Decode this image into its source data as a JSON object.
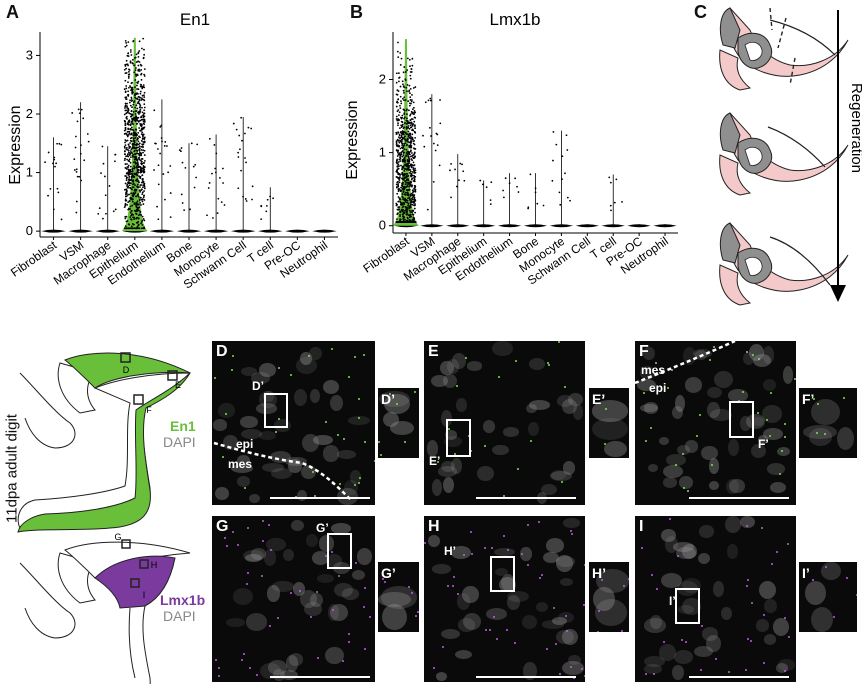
{
  "panels": {
    "A": "A",
    "B": "B",
    "C": "C",
    "D": "D",
    "E": "E",
    "F": "F",
    "G": "G",
    "H": "H",
    "I": "I",
    "Dp": "D’",
    "Ep": "E’",
    "Fp": "F’",
    "Gp": "G’",
    "Hp": "H’",
    "Ip": "I’"
  },
  "regeneration_label": "Regeneration",
  "side_label": "11dpa adult digit",
  "legend_top": {
    "marker": "En1",
    "stain": "DAPI"
  },
  "legend_bottom": {
    "marker": "Lmx1b",
    "stain": "DAPI"
  },
  "diagram_boxes": {
    "D": "D",
    "E": "E",
    "F": "F",
    "G": "G",
    "H": "H",
    "I": "I"
  },
  "tissue_labels": {
    "epi": "epi",
    "mes": "mes"
  },
  "colors": {
    "en1_green": "#6abf3a",
    "lmx1b_purple": "#7a3a9e",
    "soft_tissue": "#f4c9c9",
    "bone": "#999999"
  },
  "chart_data": [
    {
      "type": "violin",
      "title": "En1",
      "ylabel": "Expression",
      "categories": [
        "Fibroblast",
        "VSM",
        "Macrophage",
        "Epithelium",
        "Endothelium",
        "Bone",
        "Monocyte",
        "Schwann Cell",
        "T cell",
        "Pre-OC",
        "Neutrophil"
      ],
      "yticks": [
        0,
        1,
        2,
        3
      ],
      "ylim": [
        -0.1,
        3.4
      ],
      "max_values": [
        1.6,
        2.2,
        1.45,
        3.3,
        2.25,
        1.5,
        1.65,
        1.95,
        0.75,
        0.02,
        0.02
      ],
      "highlight": "Epithelium"
    },
    {
      "type": "violin",
      "title": "Lmx1b",
      "ylabel": "Expression",
      "categories": [
        "Fibroblast",
        "VSM",
        "Macrophage",
        "Epithelium",
        "Endothelium",
        "Bone",
        "Monocyte",
        "Schwann Cell",
        "T cell",
        "Pre-OC",
        "Neutrophil"
      ],
      "yticks": [
        0,
        1,
        2
      ],
      "ylim": [
        -0.1,
        2.65
      ],
      "max_values": [
        2.55,
        1.8,
        0.98,
        0.62,
        0.72,
        0.72,
        1.3,
        0.02,
        0.7,
        0.02,
        0.02
      ],
      "highlight": "Fibroblast"
    }
  ]
}
